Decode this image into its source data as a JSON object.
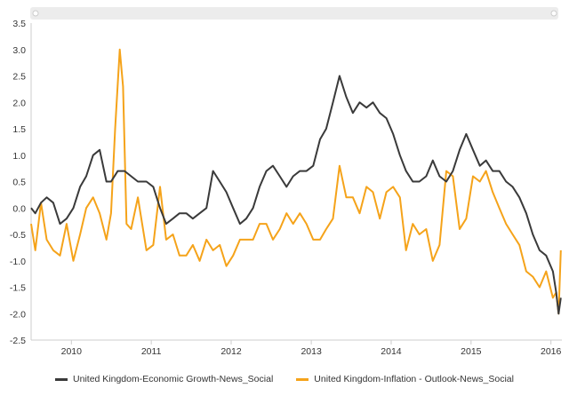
{
  "chart_data": {
    "type": "line",
    "title": "",
    "xlabel": "",
    "ylabel": "",
    "xlim": [
      "2009-07-01",
      "2016-02-20"
    ],
    "ylim": [
      -2.5,
      3.5
    ],
    "y_ticks": [
      3.5,
      3.0,
      2.5,
      2.0,
      1.5,
      1.0,
      0.5,
      0.0,
      -0.5,
      -1.0,
      -1.5,
      -2.0,
      -2.5
    ],
    "y_tick_labels": [
      "3.5",
      "3.0",
      "2.5",
      "2.0",
      "1.5",
      "1.0",
      "0.5",
      "0.0",
      "-0.5",
      "-1.0",
      "-1.5",
      "-2.0",
      "-2.5"
    ],
    "x_ticks": [
      "2010-01-01",
      "2011-01-01",
      "2012-01-01",
      "2013-01-01",
      "2014-01-01",
      "2015-01-01",
      "2016-01-01"
    ],
    "x_tick_labels": [
      "2010",
      "2011",
      "2012",
      "2013",
      "2014",
      "2015",
      "2016"
    ],
    "grid": false,
    "legend_position": "bottom",
    "series": [
      {
        "name": "United Kingdom-Economic Growth-News_Social",
        "color": "#3a3a3a",
        "x": [
          "2009-07-01",
          "2009-07-20",
          "2009-08-15",
          "2009-09-10",
          "2009-10-10",
          "2009-11-10",
          "2009-12-10",
          "2010-01-10",
          "2010-02-10",
          "2010-03-10",
          "2010-04-10",
          "2010-05-10",
          "2010-06-10",
          "2010-07-01",
          "2010-08-01",
          "2010-09-01",
          "2010-10-01",
          "2010-11-01",
          "2010-12-10",
          "2011-01-10",
          "2011-02-10",
          "2011-03-10",
          "2011-04-10",
          "2011-05-10",
          "2011-06-10",
          "2011-07-10",
          "2011-08-10",
          "2011-09-10",
          "2011-10-10",
          "2011-11-10",
          "2011-12-10",
          "2012-01-10",
          "2012-02-10",
          "2012-03-10",
          "2012-04-10",
          "2012-05-10",
          "2012-06-10",
          "2012-07-10",
          "2012-08-10",
          "2012-09-10",
          "2012-10-10",
          "2012-11-10",
          "2012-12-10",
          "2013-01-10",
          "2013-02-10",
          "2013-03-10",
          "2013-04-10",
          "2013-05-10",
          "2013-06-10",
          "2013-07-10",
          "2013-08-10",
          "2013-09-10",
          "2013-10-10",
          "2013-11-10",
          "2013-12-10",
          "2014-01-10",
          "2014-02-10",
          "2014-03-10",
          "2014-04-10",
          "2014-05-10",
          "2014-06-10",
          "2014-07-10",
          "2014-08-10",
          "2014-09-10",
          "2014-10-10",
          "2014-11-10",
          "2014-12-10",
          "2015-01-10",
          "2015-02-10",
          "2015-03-10",
          "2015-04-10",
          "2015-05-10",
          "2015-06-10",
          "2015-07-10",
          "2015-08-10",
          "2015-09-10",
          "2015-10-10",
          "2015-11-10",
          "2015-12-10",
          "2016-01-10",
          "2016-01-25",
          "2016-02-05",
          "2016-02-15"
        ],
        "y": [
          0.0,
          -0.1,
          0.1,
          0.2,
          0.1,
          -0.3,
          -0.2,
          0.0,
          0.4,
          0.6,
          1.0,
          1.1,
          0.5,
          0.5,
          0.7,
          0.7,
          0.6,
          0.5,
          0.5,
          0.4,
          0.0,
          -0.3,
          -0.2,
          -0.1,
          -0.1,
          -0.2,
          -0.1,
          0.0,
          0.7,
          0.5,
          0.3,
          0.0,
          -0.3,
          -0.2,
          0.0,
          0.4,
          0.7,
          0.8,
          0.6,
          0.4,
          0.6,
          0.7,
          0.7,
          0.8,
          1.3,
          1.5,
          2.0,
          2.5,
          2.1,
          1.8,
          2.0,
          1.9,
          2.0,
          1.8,
          1.7,
          1.4,
          1.0,
          0.7,
          0.5,
          0.5,
          0.6,
          0.9,
          0.6,
          0.5,
          0.7,
          1.1,
          1.4,
          1.1,
          0.8,
          0.9,
          0.7,
          0.7,
          0.5,
          0.4,
          0.2,
          -0.1,
          -0.5,
          -0.8,
          -0.9,
          -1.2,
          -1.6,
          -2.0,
          -1.7
        ]
      },
      {
        "name": "United Kingdom-Inflation - Outlook-News_Social",
        "color": "#f5a31a",
        "x": [
          "2009-07-01",
          "2009-07-20",
          "2009-08-15",
          "2009-09-10",
          "2009-10-10",
          "2009-11-10",
          "2009-12-10",
          "2010-01-10",
          "2010-02-10",
          "2010-03-10",
          "2010-04-10",
          "2010-05-10",
          "2010-06-10",
          "2010-07-01",
          "2010-07-20",
          "2010-08-10",
          "2010-08-25",
          "2010-09-10",
          "2010-10-01",
          "2010-11-01",
          "2010-12-10",
          "2011-01-10",
          "2011-02-10",
          "2011-03-10",
          "2011-04-10",
          "2011-05-10",
          "2011-06-10",
          "2011-07-10",
          "2011-08-10",
          "2011-09-10",
          "2011-10-10",
          "2011-11-10",
          "2011-12-10",
          "2012-01-10",
          "2012-02-10",
          "2012-03-10",
          "2012-04-10",
          "2012-05-10",
          "2012-06-10",
          "2012-07-10",
          "2012-08-10",
          "2012-09-10",
          "2012-10-10",
          "2012-11-10",
          "2012-12-10",
          "2013-01-10",
          "2013-02-10",
          "2013-03-10",
          "2013-04-10",
          "2013-05-10",
          "2013-06-10",
          "2013-07-10",
          "2013-08-10",
          "2013-09-10",
          "2013-10-10",
          "2013-11-10",
          "2013-12-10",
          "2014-01-10",
          "2014-02-10",
          "2014-03-10",
          "2014-04-10",
          "2014-05-10",
          "2014-06-10",
          "2014-07-10",
          "2014-08-10",
          "2014-09-10",
          "2014-10-10",
          "2014-11-10",
          "2014-12-10",
          "2015-01-10",
          "2015-02-10",
          "2015-03-10",
          "2015-04-10",
          "2015-05-10",
          "2015-06-10",
          "2015-07-10",
          "2015-08-10",
          "2015-09-10",
          "2015-10-10",
          "2015-11-10",
          "2015-12-10",
          "2016-01-10",
          "2016-01-25",
          "2016-02-05",
          "2016-02-15"
        ],
        "y": [
          -0.3,
          -0.8,
          0.1,
          -0.6,
          -0.8,
          -0.9,
          -0.3,
          -1.0,
          -0.5,
          0.0,
          0.2,
          -0.1,
          -0.6,
          -0.1,
          1.5,
          3.0,
          2.3,
          -0.3,
          -0.4,
          0.2,
          -0.8,
          -0.7,
          0.4,
          -0.6,
          -0.5,
          -0.9,
          -0.9,
          -0.7,
          -1.0,
          -0.6,
          -0.8,
          -0.7,
          -1.1,
          -0.9,
          -0.6,
          -0.6,
          -0.6,
          -0.3,
          -0.3,
          -0.6,
          -0.4,
          -0.1,
          -0.3,
          -0.1,
          -0.3,
          -0.6,
          -0.6,
          -0.4,
          -0.2,
          0.8,
          0.2,
          0.2,
          -0.1,
          0.4,
          0.3,
          -0.2,
          0.3,
          0.4,
          0.2,
          -0.8,
          -0.3,
          -0.5,
          -0.4,
          -1.0,
          -0.7,
          0.7,
          0.6,
          -0.4,
          -0.2,
          0.6,
          0.5,
          0.7,
          0.3,
          0.0,
          -0.3,
          -0.5,
          -0.7,
          -1.2,
          -1.3,
          -1.5,
          -1.2,
          -1.7,
          -1.6,
          -2.0,
          -0.8
        ]
      }
    ]
  },
  "legend": {
    "items": [
      {
        "label": "United Kingdom-Economic Growth-News_Social",
        "color": "#3a3a3a"
      },
      {
        "label": "United Kingdom-Inflation - Outlook-News_Social",
        "color": "#f5a31a"
      }
    ]
  }
}
